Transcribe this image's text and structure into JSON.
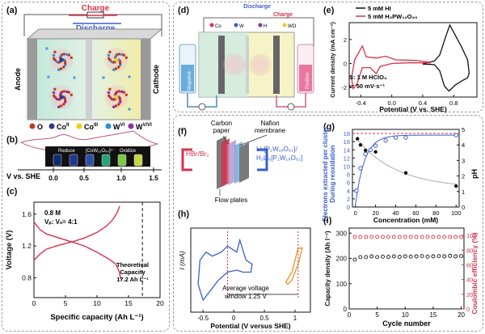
{
  "panels": {
    "a": {
      "label": "(a)",
      "charge": "Charge",
      "discharge": "Discharge",
      "anode": "Anode",
      "cathode": "Cathode",
      "legend": [
        "O",
        "Co",
        "Co",
        "W",
        "W"
      ],
      "legend_sup": [
        "",
        "II",
        "III",
        "VI",
        "V/VI"
      ],
      "legend_colors": [
        "#c0392b",
        "#2d3a8c",
        "#e8d21a",
        "#2f8fd6",
        "#8b2fa6"
      ]
    },
    "b": {
      "label": "(b)",
      "reduce": "Reduce",
      "oxidize": "Oxidize",
      "species": "[CoW₁₂O₄₀]ⁿ⁻",
      "xaxis": "V vs. SHE",
      "ticks": [
        "0.0",
        "0.5",
        "1.0",
        "1.5"
      ],
      "swatches": [
        "#0d2a6e",
        "#20358f",
        "#2e4ea8",
        "#24a37a",
        "#7ac94a",
        "#c6d64a"
      ]
    },
    "c": {
      "label": "(c)",
      "conc": "0.8 M",
      "ratio": "Vₚ: Vₙ= 4:1",
      "theoretical": "Theoretical",
      "capacity": "Capacity",
      "capval": "17.2 Ah L⁻¹"
    },
    "d": {
      "label": "(d)",
      "discharge": "Discharge",
      "charge": "Charge",
      "negative": "Negative",
      "positive": "Positive",
      "ions": [
        "Co",
        "W",
        "H",
        "WO"
      ]
    },
    "e": {
      "label": "(e)",
      "legend": [
        "5 mM HI",
        "5 mM H₃PW₁₂O₄₀"
      ],
      "note1": "S: 1 M HClO₄",
      "note2": "ν: 50 mV·s⁻¹"
    },
    "f": {
      "label": "(f)",
      "carbon": "Carbon",
      "paper": "paper",
      "nafion": "Nafion",
      "membrane": "membrane",
      "hbr": "HBr/Br₂",
      "li1": "Li₆[P₂W₁₈O₆₂]/",
      "li2": "H₂Li₆[P₂W₁₈O₆₂]",
      "flow": "Flow plates"
    },
    "g": {
      "label": "(g)",
      "ylabel_left": "Electrons extracted per cluster",
      "ylabel_left2": "During reoxidation",
      "ylabel_right": "pH"
    },
    "h": {
      "label": "(h)",
      "avg1": "Average voltage",
      "avg2": "window 1.25 V"
    },
    "i": {
      "label": "(i)",
      "ylabel_right": "Coulombic efficiency (%)"
    }
  },
  "chart_data": [
    {
      "type": "line",
      "id": "c",
      "title": "",
      "xlabel": "Specific capacity (Ah L⁻¹)",
      "ylabel": "Voltage (V)",
      "xlim": [
        0,
        20
      ],
      "ylim": [
        0.55,
        1.75
      ],
      "xticks": [
        0,
        5,
        10,
        15,
        20
      ],
      "yticks": [
        0.8,
        1.2,
        1.6
      ],
      "series": [
        {
          "values": [
            [
              0,
              1.5
            ],
            [
              1,
              1.4
            ],
            [
              2,
              1.35
            ],
            [
              4,
              1.3
            ],
            [
              6,
              1.25
            ],
            [
              8,
              1.2
            ],
            [
              10,
              1.12
            ],
            [
              12,
              1.03
            ],
            [
              13,
              0.97
            ],
            [
              13.5,
              0.88
            ],
            [
              13.8,
              0.78
            ]
          ]
        },
        {
          "values": [
            [
              0,
              1.02
            ],
            [
              1,
              1.1
            ],
            [
              2,
              1.16
            ],
            [
              4,
              1.21
            ],
            [
              6,
              1.25
            ],
            [
              8,
              1.3
            ],
            [
              10,
              1.37
            ],
            [
              11.5,
              1.45
            ],
            [
              12.5,
              1.53
            ],
            [
              13.2,
              1.62
            ],
            [
              13.6,
              1.7
            ]
          ]
        }
      ],
      "vline": 17.2
    },
    {
      "type": "line",
      "id": "e",
      "xlabel": "Potential (V vs. SHE)",
      "ylabel": "Current density (mA cm⁻²)",
      "xlim": [
        -0.55,
        1.1
      ],
      "ylim": [
        -2.8,
        3.4
      ],
      "xticks": [
        -0.4,
        0.0,
        0.4,
        0.8
      ],
      "xticklabels": [
        "-0.4",
        "0.0",
        "0.4",
        "0.8"
      ],
      "yticks": [
        -2,
        0,
        2
      ],
      "series": [
        {
          "name": "5 mM HI",
          "color": "#111111",
          "values": [
            [
              0.4,
              -0.05
            ],
            [
              0.55,
              -0.1
            ],
            [
              0.62,
              -0.6
            ],
            [
              0.68,
              -1.9
            ],
            [
              0.74,
              -2.3
            ],
            [
              0.82,
              -1.8
            ],
            [
              0.92,
              -1.4
            ],
            [
              0.98,
              -1.2
            ],
            [
              1.0,
              -0.8
            ],
            [
              0.98,
              0.3
            ],
            [
              0.9,
              1.4
            ],
            [
              0.8,
              2.6
            ],
            [
              0.75,
              3.2
            ],
            [
              0.7,
              2.3
            ],
            [
              0.62,
              0.7
            ],
            [
              0.55,
              0.2
            ],
            [
              0.45,
              0.05
            ],
            [
              0.4,
              -0.05
            ]
          ]
        },
        {
          "name": "5 mM H₃PW₁₂O₄₀",
          "color": "#d6334a",
          "values": [
            [
              0.5,
              0.05
            ],
            [
              0.2,
              0.05
            ],
            [
              0.0,
              0.0
            ],
            [
              -0.15,
              -0.25
            ],
            [
              -0.2,
              -0.85
            ],
            [
              -0.28,
              -0.35
            ],
            [
              -0.38,
              -0.35
            ],
            [
              -0.45,
              -1.7
            ],
            [
              -0.5,
              -2.1
            ],
            [
              -0.52,
              -1.2
            ],
            [
              -0.48,
              0.3
            ],
            [
              -0.38,
              1.45
            ],
            [
              -0.33,
              0.55
            ],
            [
              -0.2,
              0.45
            ],
            [
              -0.08,
              0.6
            ],
            [
              0.05,
              0.3
            ],
            [
              0.3,
              0.25
            ],
            [
              0.5,
              0.1
            ]
          ]
        }
      ]
    },
    {
      "type": "scatter",
      "id": "g",
      "xlabel": "Concentration (mM)",
      "xlim": [
        -3,
        103
      ],
      "ylim": [
        0,
        19
      ],
      "y2lim": [
        0,
        5
      ],
      "xticks": [
        0,
        20,
        40,
        60,
        80,
        100
      ],
      "yticks": [
        0,
        2,
        4,
        6,
        8,
        10,
        12,
        14,
        16,
        18
      ],
      "y2ticks": [
        0,
        1,
        2,
        3,
        4,
        5
      ],
      "series": [
        {
          "name": "electrons",
          "axis": "left",
          "color": "#3a5fcf",
          "marker": "open",
          "values": [
            [
              1,
              4
            ],
            [
              5,
              9.5
            ],
            [
              10,
              13
            ],
            [
              15,
              14
            ],
            [
              20,
              15
            ],
            [
              30,
              16.3
            ],
            [
              40,
              17
            ],
            [
              50,
              17
            ],
            [
              100,
              17.6
            ]
          ]
        },
        {
          "name": "pH",
          "axis": "right",
          "color": "#111111",
          "marker": "filled",
          "values": [
            [
              2,
              4.4
            ],
            [
              5,
              4.0
            ],
            [
              10,
              3.65
            ],
            [
              20,
              3.55
            ],
            [
              50,
              2.2
            ],
            [
              100,
              1.35
            ]
          ]
        }
      ],
      "hline_left": 18
    },
    {
      "type": "line",
      "id": "h",
      "xlabel": "Potential (V versus SHE)",
      "ylabel": "I (mA)",
      "xlim": [
        -0.7,
        1.25
      ],
      "xticks": [
        -0.5,
        0.0,
        0.5,
        1.0
      ],
      "series": [
        {
          "color": "#3a5fcf",
          "values": [
            [
              0.05,
              0.15
            ],
            [
              -0.1,
              0.1
            ],
            [
              -0.25,
              -0.1
            ],
            [
              -0.35,
              -0.3
            ],
            [
              -0.5,
              -0.6
            ],
            [
              -0.58,
              -0.2
            ],
            [
              -0.55,
              0.4
            ],
            [
              -0.45,
              0.6
            ],
            [
              -0.35,
              0.5
            ],
            [
              -0.2,
              0.6
            ],
            [
              -0.1,
              0.75
            ],
            [
              0.05,
              0.6
            ],
            [
              0.1,
              0.9
            ],
            [
              0.2,
              0.4
            ],
            [
              0.3,
              0.3
            ],
            [
              0.28,
              0.1
            ],
            [
              0.15,
              0.1
            ],
            [
              0.05,
              0.15
            ]
          ]
        },
        {
          "color": "#e8912a",
          "values": [
            [
              0.85,
              -0.15
            ],
            [
              0.95,
              0.1
            ],
            [
              1.05,
              0.7
            ],
            [
              1.12,
              0.7
            ],
            [
              1.05,
              0.3
            ],
            [
              0.95,
              -0.1
            ],
            [
              0.88,
              -0.2
            ],
            [
              0.85,
              -0.15
            ]
          ]
        }
      ],
      "vlines": [
        -0.1,
        1.05
      ]
    },
    {
      "type": "scatter",
      "id": "i",
      "xlabel": "Cycle number",
      "ylabel": "Capacity density (Ah l⁻¹)",
      "xlim": [
        0,
        20.5
      ],
      "ylim": [
        0,
        320
      ],
      "y2lim": [
        0,
        110
      ],
      "xticks": [
        0,
        5,
        10,
        15,
        20
      ],
      "yticks": [
        0,
        100,
        200,
        300
      ],
      "y2ticks": [
        0,
        20,
        40,
        60,
        80,
        100
      ],
      "series": [
        {
          "name": "capacity",
          "axis": "left",
          "color": "#111111",
          "values": [
            [
              1,
              195
            ],
            [
              2,
              205
            ],
            [
              3,
              205
            ],
            [
              4,
              208
            ],
            [
              5,
              205
            ],
            [
              6,
              207
            ],
            [
              7,
              206
            ],
            [
              8,
              208
            ],
            [
              9,
              206
            ],
            [
              10,
              208
            ],
            [
              11,
              207
            ],
            [
              12,
              208
            ],
            [
              13,
              209
            ],
            [
              14,
              207
            ],
            [
              15,
              208
            ],
            [
              16,
              209
            ],
            [
              17,
              208
            ],
            [
              18,
              210
            ],
            [
              19,
              208
            ],
            [
              20,
              209
            ]
          ]
        },
        {
          "name": "coulombic",
          "axis": "right",
          "color": "#d6334a",
          "values": [
            [
              1,
              98
            ],
            [
              2,
              98
            ],
            [
              3,
              98
            ],
            [
              4,
              98
            ],
            [
              5,
              98
            ],
            [
              6,
              98
            ],
            [
              7,
              98
            ],
            [
              8,
              98
            ],
            [
              9,
              98
            ],
            [
              10,
              98
            ],
            [
              11,
              98
            ],
            [
              12,
              98
            ],
            [
              13,
              98
            ],
            [
              14,
              98
            ],
            [
              15,
              98
            ],
            [
              16,
              98
            ],
            [
              17,
              98
            ],
            [
              18,
              98
            ],
            [
              19,
              98
            ],
            [
              20,
              98
            ]
          ]
        }
      ]
    }
  ]
}
